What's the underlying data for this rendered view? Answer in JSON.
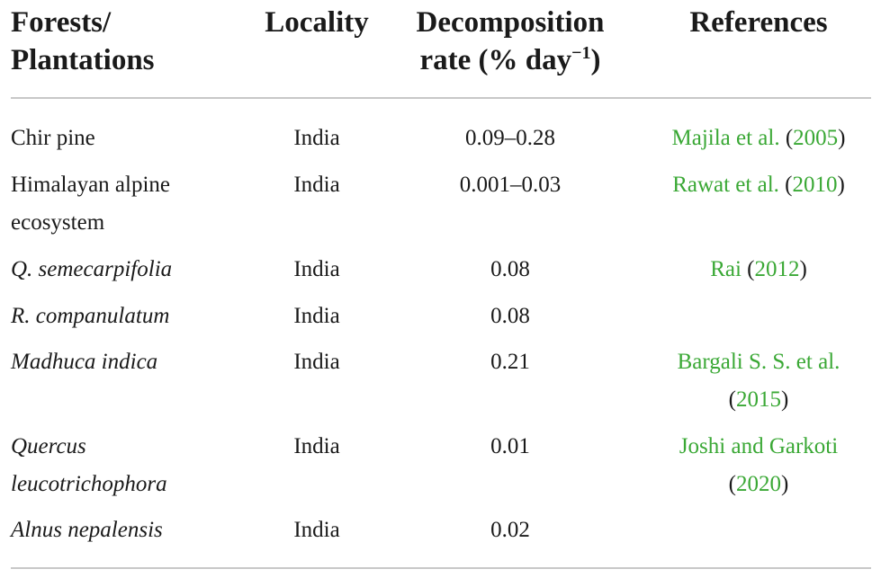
{
  "headers": {
    "col1_line1": "Forests/",
    "col1_line2": "Plantations",
    "col2": "Locality",
    "col3_line1": "Decomposition",
    "col3_line2": "rate (% day",
    "col3_sup": "−1",
    "col3_close": ")",
    "col4": "References"
  },
  "rows": [
    {
      "forest_line1": "Chir pine",
      "forest_line2": "",
      "locality": "India",
      "rate": "0.09–0.28",
      "ref_author_line1": "Majila et al.",
      "ref_year": "2005"
    },
    {
      "forest_line1": "Himalayan alpine",
      "forest_line2": "ecosystem",
      "locality": "India",
      "rate": "0.001–0.03",
      "ref_author_line1": "Rawat et al.",
      "ref_year": "2010"
    },
    {
      "forest_line1": "Q. semecarpifolia",
      "forest_line2": "",
      "locality": "India",
      "rate": "0.08",
      "ref_author_line1": "Rai",
      "ref_year": "2012"
    },
    {
      "forest_line1": "R. companulatum",
      "forest_line2": "",
      "locality": "India",
      "rate": "0.08",
      "ref_author_line1": "",
      "ref_year": ""
    },
    {
      "forest_line1": "Madhuca indica",
      "forest_line2": "",
      "locality": "India",
      "rate": "0.21",
      "ref_author_line1": "Bargali S. S. et al.",
      "ref_year": "2015"
    },
    {
      "forest_line1": "Quercus",
      "forest_line2": "leucotrichophora",
      "locality": "India",
      "rate": "0.01",
      "ref_author_line1": "Joshi and Garkoti",
      "ref_year": "2020"
    },
    {
      "forest_line1": "Alnus nepalensis",
      "forest_line2": "",
      "locality": "India",
      "rate": "0.02",
      "ref_author_line1": "",
      "ref_year": ""
    }
  ]
}
